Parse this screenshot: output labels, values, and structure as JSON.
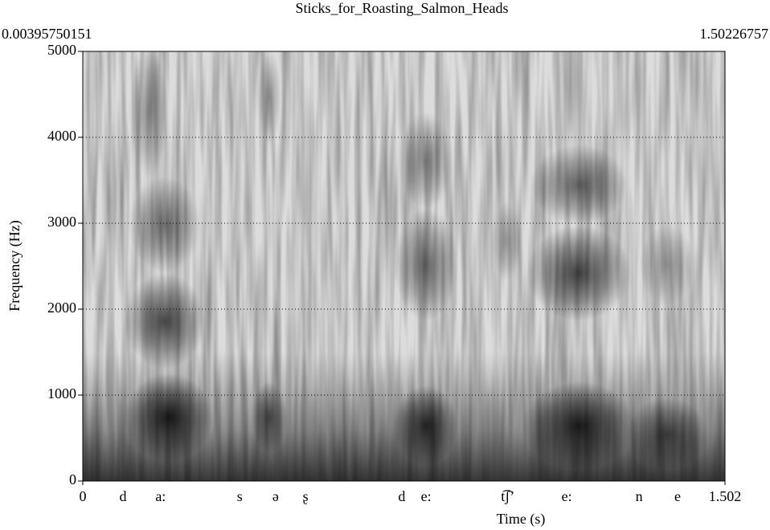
{
  "chart_data": {
    "type": "spectrogram",
    "title": "Sticks_for_Roasting_Salmon_Heads",
    "selection": [
      0.00395750151,
      1.50226757
    ],
    "xlabel": "Time (s)",
    "ylabel": "Frequency (Hz)",
    "xlim": [
      0,
      1.502
    ],
    "xticks": [
      0,
      1.502
    ],
    "ylim": [
      0,
      5000
    ],
    "yticks": [
      0,
      1000,
      2000,
      3000,
      4000,
      5000
    ],
    "grid": true,
    "segments": [
      {
        "label": "d",
        "x": 0.094
      },
      {
        "label": "a:",
        "x": 0.182
      },
      {
        "label": "s",
        "x": 0.367
      },
      {
        "label": "ə",
        "x": 0.451
      },
      {
        "label": "ʂ",
        "x": 0.521
      },
      {
        "label": "d",
        "x": 0.746
      },
      {
        "label": "e:",
        "x": 0.803
      },
      {
        "label": "t͡ʃʼ",
        "x": 0.994
      },
      {
        "label": "e:",
        "x": 1.132
      },
      {
        "label": "n",
        "x": 1.301
      },
      {
        "label": "e",
        "x": 1.391
      }
    ]
  }
}
